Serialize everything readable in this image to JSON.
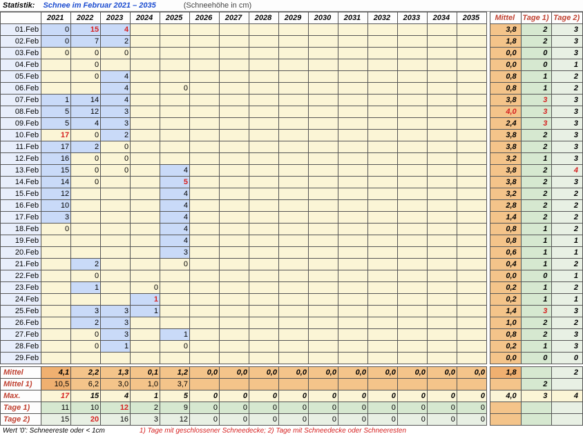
{
  "header": {
    "label": "Statistik:",
    "title": "Schnee im Februar 2021 – 2035",
    "subtitle": "(Schneehöhe in cm)"
  },
  "years": [
    "2021",
    "2022",
    "2023",
    "2024",
    "2025",
    "2026",
    "2027",
    "2028",
    "2029",
    "2030",
    "2031",
    "2032",
    "2033",
    "2034",
    "2035"
  ],
  "days": [
    "01.Feb",
    "02.Feb",
    "03.Feb",
    "04.Feb",
    "05.Feb",
    "06.Feb",
    "07.Feb",
    "08.Feb",
    "09.Feb",
    "10.Feb",
    "11.Feb",
    "12.Feb",
    "13.Feb",
    "14.Feb",
    "15.Feb",
    "16.Feb",
    "17.Feb",
    "18.Feb",
    "19.Feb",
    "20.Feb",
    "21.Feb",
    "22.Feb",
    "23.Feb",
    "24.Feb",
    "25.Feb",
    "26.Feb",
    "27.Feb",
    "28.Feb",
    "29.Feb"
  ],
  "cells": {
    "01.Feb": {
      "2021": {
        "v": "0",
        "bg": "blue"
      },
      "2022": {
        "v": "15",
        "bg": "blue",
        "red": true
      },
      "2023": {
        "v": "4",
        "bg": "blue",
        "red": true
      }
    },
    "02.Feb": {
      "2021": {
        "v": "0",
        "bg": "blue"
      },
      "2022": {
        "v": "7",
        "bg": "blue"
      },
      "2023": {
        "v": "2",
        "bg": "blue"
      }
    },
    "03.Feb": {
      "2021": {
        "v": "0"
      },
      "2022": {
        "v": "0"
      },
      "2023": {
        "v": "0"
      }
    },
    "04.Feb": {
      "2022": {
        "v": "0"
      }
    },
    "05.Feb": {
      "2022": {
        "v": "0"
      },
      "2023": {
        "v": "4",
        "bg": "blue"
      }
    },
    "06.Feb": {
      "2023": {
        "v": "4",
        "bg": "blue"
      },
      "2025": {
        "v": "0"
      }
    },
    "07.Feb": {
      "2021": {
        "v": "1",
        "bg": "blue"
      },
      "2022": {
        "v": "14",
        "bg": "blue"
      },
      "2023": {
        "v": "4",
        "bg": "blue"
      }
    },
    "08.Feb": {
      "2021": {
        "v": "5",
        "bg": "blue"
      },
      "2022": {
        "v": "12",
        "bg": "blue"
      },
      "2023": {
        "v": "3",
        "bg": "blue"
      }
    },
    "09.Feb": {
      "2021": {
        "v": "5",
        "bg": "blue"
      },
      "2022": {
        "v": "4",
        "bg": "blue"
      },
      "2023": {
        "v": "3",
        "bg": "blue"
      }
    },
    "10.Feb": {
      "2021": {
        "v": "17",
        "red": true
      },
      "2022": {
        "v": "0"
      },
      "2023": {
        "v": "2",
        "bg": "blue"
      }
    },
    "11.Feb": {
      "2021": {
        "v": "17",
        "bg": "blue"
      },
      "2022": {
        "v": "2",
        "bg": "blue"
      },
      "2023": {
        "v": "0"
      }
    },
    "12.Feb": {
      "2021": {
        "v": "16",
        "bg": "blue"
      },
      "2022": {
        "v": "0"
      },
      "2023": {
        "v": "0"
      }
    },
    "13.Feb": {
      "2021": {
        "v": "15",
        "bg": "blue"
      },
      "2022": {
        "v": "0"
      },
      "2023": {
        "v": "0"
      },
      "2025": {
        "v": "4",
        "bg": "blue"
      }
    },
    "14.Feb": {
      "2021": {
        "v": "14",
        "bg": "blue"
      },
      "2022": {
        "v": "0"
      },
      "2025": {
        "v": "5",
        "bg": "blue",
        "red": true
      }
    },
    "15.Feb": {
      "2021": {
        "v": "12",
        "bg": "blue"
      },
      "2025": {
        "v": "4",
        "bg": "blue"
      }
    },
    "16.Feb": {
      "2021": {
        "v": "10",
        "bg": "blue"
      },
      "2025": {
        "v": "4",
        "bg": "blue"
      }
    },
    "17.Feb": {
      "2021": {
        "v": "3",
        "bg": "blue"
      },
      "2025": {
        "v": "4",
        "bg": "blue"
      }
    },
    "18.Feb": {
      "2021": {
        "v": "0"
      },
      "2025": {
        "v": "4",
        "bg": "blue"
      }
    },
    "19.Feb": {
      "2025": {
        "v": "4",
        "bg": "blue"
      }
    },
    "20.Feb": {
      "2025": {
        "v": "3",
        "bg": "blue"
      }
    },
    "21.Feb": {
      "2022": {
        "v": "2",
        "bg": "blue"
      },
      "2025": {
        "v": "0"
      }
    },
    "22.Feb": {
      "2022": {
        "v": "0"
      }
    },
    "23.Feb": {
      "2022": {
        "v": "1",
        "bg": "blue"
      },
      "2024": {
        "v": "0"
      }
    },
    "24.Feb": {
      "2024": {
        "v": "1",
        "bg": "blue",
        "red": true
      }
    },
    "25.Feb": {
      "2022": {
        "v": "3",
        "bg": "blue"
      },
      "2023": {
        "v": "3",
        "bg": "blue"
      },
      "2024": {
        "v": "1",
        "bg": "blue"
      }
    },
    "26.Feb": {
      "2022": {
        "v": "2",
        "bg": "blue"
      },
      "2023": {
        "v": "3",
        "bg": "blue"
      }
    },
    "27.Feb": {
      "2022": {
        "v": "0"
      },
      "2023": {
        "v": "3",
        "bg": "blue"
      },
      "2025": {
        "v": "1",
        "bg": "blue"
      }
    },
    "28.Feb": {
      "2022": {
        "v": "0"
      },
      "2023": {
        "v": "1",
        "bg": "blue"
      },
      "2025": {
        "v": "0"
      }
    },
    "29.Feb": {}
  },
  "summary": [
    {
      "label": "Mittel",
      "bg": "tan",
      "vals": [
        "4,1",
        "2,2",
        "1,3",
        "0,1",
        "1,2",
        "0,0",
        "0,0",
        "0,0",
        "0,0",
        "0,0",
        "0,0",
        "0,0",
        "0,0",
        "0,0",
        "0,0"
      ],
      "boldFirst": true,
      "allItalBold": true,
      "firstBg": "dtan"
    },
    {
      "label": "Mittel 1)",
      "bg": "tan",
      "vals": [
        "10,5",
        "6,2",
        "3,0",
        "1,0",
        "3,7",
        "",
        "",
        "",
        "",
        "",
        "",
        "",
        "",
        "",
        ""
      ],
      "firstBg": "dtan"
    },
    {
      "label": "Max.",
      "bg": "sum",
      "vals": [
        "17",
        "15",
        "4",
        "1",
        "5",
        "0",
        "0",
        "0",
        "0",
        "0",
        "0",
        "0",
        "0",
        "0",
        "0"
      ],
      "allItalBold": true,
      "firstRed": true
    },
    {
      "label": "Tage 1)",
      "bg": "green",
      "vals": [
        "11",
        "10",
        "12",
        "2",
        "9",
        "0",
        "0",
        "0",
        "0",
        "0",
        "0",
        "0",
        "0",
        "0",
        "0"
      ],
      "redIdx": 2
    },
    {
      "label": "Tage 2)",
      "bg": "lgreen",
      "vals": [
        "15",
        "20",
        "16",
        "3",
        "12",
        "0",
        "0",
        "0",
        "0",
        "0",
        "0",
        "0",
        "0",
        "0",
        "0"
      ],
      "redIdx": 1
    }
  ],
  "side": {
    "headers": [
      "Mittel",
      "Tage 1)",
      "Tage 2)"
    ],
    "headerColors": [
      "#c04030",
      "#c04030",
      "#c04030"
    ],
    "rows": [
      [
        "3,8",
        "2",
        "3"
      ],
      [
        "1,8",
        "2",
        "3"
      ],
      [
        "0,0",
        "0",
        "3"
      ],
      [
        "0,0",
        "0",
        "1"
      ],
      [
        "0,8",
        "1",
        "2"
      ],
      [
        "0,8",
        "1",
        "2"
      ],
      [
        "3,8",
        "3",
        "3"
      ],
      [
        "4,0",
        "3",
        "3"
      ],
      [
        "2,4",
        "3",
        "3"
      ],
      [
        "3,8",
        "2",
        "3"
      ],
      [
        "3,8",
        "2",
        "3"
      ],
      [
        "3,2",
        "1",
        "3"
      ],
      [
        "3,8",
        "2",
        "4"
      ],
      [
        "3,8",
        "2",
        "3"
      ],
      [
        "3,2",
        "2",
        "2"
      ],
      [
        "2,8",
        "2",
        "2"
      ],
      [
        "1,4",
        "2",
        "2"
      ],
      [
        "0,8",
        "1",
        "2"
      ],
      [
        "0,8",
        "1",
        "1"
      ],
      [
        "0,6",
        "1",
        "1"
      ],
      [
        "0,4",
        "1",
        "2"
      ],
      [
        "0,0",
        "0",
        "1"
      ],
      [
        "0,2",
        "1",
        "2"
      ],
      [
        "0,2",
        "1",
        "1"
      ],
      [
        "1,4",
        "3",
        "3"
      ],
      [
        "1,0",
        "2",
        "2"
      ],
      [
        "0,8",
        "2",
        "3"
      ],
      [
        "0,2",
        "1",
        "3"
      ],
      [
        "0,0",
        "0",
        "0"
      ]
    ],
    "rowStyles": {
      "6": {
        "1": "red"
      },
      "7": {
        "0": "red",
        "1": "red"
      },
      "8": {
        "1": "red"
      },
      "12": {
        "2": "red"
      },
      "24": {
        "1": "red"
      }
    },
    "summary": [
      {
        "vals": [
          "1,8",
          "",
          "2"
        ],
        "bg": "dtan"
      },
      {
        "vals": [
          "",
          "2",
          ""
        ],
        "bg": "tan"
      },
      {
        "vals": [
          "4,0",
          "3",
          "4"
        ],
        "bg": "sum",
        "bold": true
      },
      {
        "vals": [
          "",
          "",
          ""
        ],
        "bg": "green"
      },
      {
        "vals": [
          "",
          "",
          ""
        ],
        "bg": "lgreen"
      }
    ]
  },
  "footnote": {
    "left": "Wert '0': Schneereste oder < 1cm",
    "right": "1) Tage mit geschlossener Schneedecke;  2) Tage mit Schneedecke oder Schneeresten"
  },
  "colors": {
    "cream": "#fbf5d6",
    "blue": "#c9daf8",
    "tan": "#f4c48a",
    "dtan": "#f0b070",
    "green": "#d6e8d0",
    "lgreen": "#e8f0e4"
  }
}
